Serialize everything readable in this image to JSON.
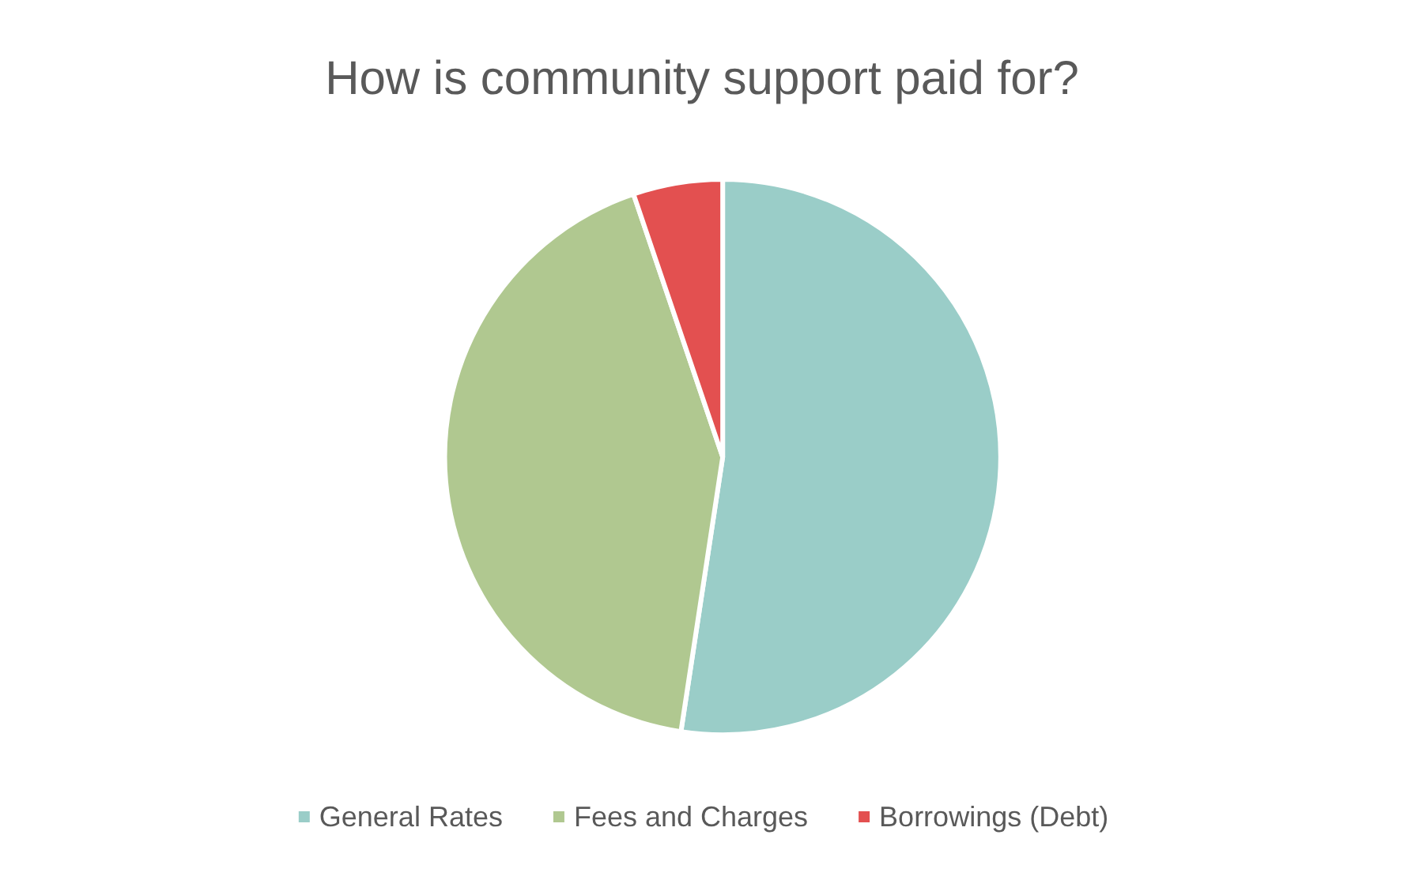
{
  "chart_data": {
    "type": "pie",
    "title": "How is community support paid for?",
    "categories": [
      "General Rates",
      "Fees and Charges",
      "Borrowings (Debt)"
    ],
    "values": [
      52.4,
      42.4,
      5.2
    ],
    "colors": [
      "#9acdc8",
      "#b0c890",
      "#e35050"
    ],
    "legend": "bottom"
  }
}
